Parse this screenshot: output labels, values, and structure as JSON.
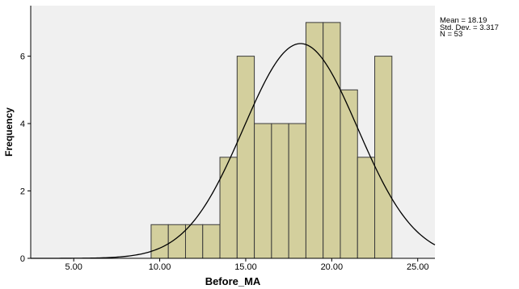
{
  "chart_data": {
    "type": "histogram",
    "xlabel": "Before_MA",
    "ylabel": "Frequency",
    "xlim": [
      2.5,
      26.0
    ],
    "ylim": [
      0,
      7.5
    ],
    "x_ticks": [
      5.0,
      10.0,
      15.0,
      20.0,
      25.0
    ],
    "x_tick_labels": [
      "5.00",
      "10.00",
      "15.00",
      "20.00",
      "25.00"
    ],
    "y_ticks": [
      0,
      2,
      4,
      6
    ],
    "y_tick_labels": [
      "0",
      "2",
      "4",
      "6"
    ],
    "bin_width": 1.0,
    "bins": [
      {
        "start": 9.5,
        "end": 10.5,
        "count": 1
      },
      {
        "start": 10.5,
        "end": 11.5,
        "count": 1
      },
      {
        "start": 11.5,
        "end": 12.5,
        "count": 1
      },
      {
        "start": 12.5,
        "end": 13.5,
        "count": 1
      },
      {
        "start": 13.5,
        "end": 14.5,
        "count": 3
      },
      {
        "start": 14.5,
        "end": 15.5,
        "count": 6
      },
      {
        "start": 15.5,
        "end": 16.5,
        "count": 4
      },
      {
        "start": 16.5,
        "end": 17.5,
        "count": 4
      },
      {
        "start": 17.5,
        "end": 18.5,
        "count": 4
      },
      {
        "start": 18.5,
        "end": 19.5,
        "count": 7
      },
      {
        "start": 19.5,
        "end": 20.5,
        "count": 7
      },
      {
        "start": 20.5,
        "end": 21.5,
        "count": 5
      },
      {
        "start": 21.5,
        "end": 22.5,
        "count": 3
      },
      {
        "start": 22.5,
        "end": 23.5,
        "count": 6
      }
    ],
    "normal_curve": {
      "mean": 18.19,
      "std": 3.317,
      "n": 53
    },
    "stats_labels": [
      "Mean = 18.19",
      "Std. Dev. = 3.317",
      "N = 53"
    ],
    "grid": false,
    "colors": {
      "bar_fill": "#d3cf9d",
      "bar_stroke": "#3a3a3a",
      "plot_background": "#f0f0f0",
      "curve": "#000000"
    }
  }
}
